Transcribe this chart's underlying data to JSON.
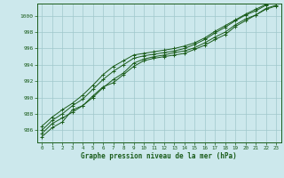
{
  "xlabel": "Graphe pression niveau de la mer (hPa)",
  "bg_color": "#cce8ec",
  "plot_bg_color": "#cce8ec",
  "grid_color": "#a0c8cc",
  "line_color": "#1a5c1a",
  "marker_color": "#1a5c1a",
  "xlim_min": -0.5,
  "xlim_max": 23.5,
  "ylim_min": 984.5,
  "ylim_max": 1001.5,
  "yticks": [
    986,
    988,
    990,
    992,
    994,
    996,
    998,
    1000
  ],
  "xticks": [
    0,
    1,
    2,
    3,
    4,
    5,
    6,
    7,
    8,
    9,
    10,
    11,
    12,
    13,
    14,
    15,
    16,
    17,
    18,
    19,
    20,
    21,
    22,
    23
  ],
  "lines": [
    [
      985.2,
      986.3,
      987.0,
      988.5,
      989.0,
      990.2,
      991.3,
      991.8,
      992.8,
      993.8,
      994.5,
      994.8,
      995.0,
      995.2,
      995.4,
      995.9,
      996.4,
      997.1,
      997.7,
      998.7,
      999.4,
      1000.1,
      1000.9,
      1001.3
    ],
    [
      985.6,
      986.8,
      987.5,
      988.2,
      989.0,
      990.0,
      991.2,
      992.2,
      993.0,
      994.2,
      994.7,
      995.0,
      995.2,
      995.5,
      995.7,
      996.1,
      996.7,
      997.4,
      998.0,
      998.9,
      999.6,
      1000.1,
      1000.8,
      1001.2
    ],
    [
      986.0,
      987.2,
      988.0,
      989.0,
      989.8,
      991.0,
      992.2,
      993.2,
      994.0,
      994.8,
      995.1,
      995.3,
      995.5,
      995.7,
      996.0,
      996.5,
      997.1,
      997.9,
      998.6,
      999.4,
      1000.1,
      1000.6,
      1001.3,
      1001.8
    ],
    [
      986.5,
      987.6,
      988.5,
      989.3,
      990.3,
      991.5,
      992.8,
      993.8,
      994.5,
      995.2,
      995.4,
      995.6,
      995.8,
      996.0,
      996.3,
      996.7,
      997.3,
      998.1,
      998.8,
      999.5,
      1000.2,
      1000.8,
      1001.4,
      1001.9
    ]
  ]
}
